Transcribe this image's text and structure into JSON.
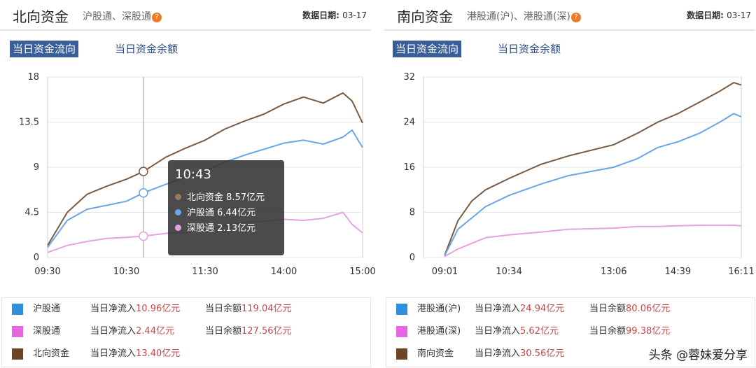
{
  "colors": {
    "north_total": "#7a5a40",
    "hugutong": "#6aa5e6",
    "shengutong": "#e6a2e2",
    "south_total": "#7a5a40",
    "ggt_sh": "#6aa5e6",
    "ggt_sz": "#e6a2e2",
    "legend_blue": "#2f8fe0",
    "legend_pink": "#e566e0",
    "legend_brown": "#6b4526"
  },
  "left": {
    "title": "北向资金",
    "subtitle": "沪股通、深股通",
    "help_icon": "question-icon",
    "date_label": "数据日期:",
    "date_value": "03-17",
    "tab_active": "当日资金流向",
    "tab_other": "当日资金余额",
    "tooltip": {
      "time": "10:43",
      "rows": [
        {
          "label": "北向资金",
          "value": "8.57亿元"
        },
        {
          "label": "沪股通",
          "value": "6.44亿元"
        },
        {
          "label": "深股通",
          "value": "2.13亿元"
        }
      ]
    },
    "legend": [
      {
        "name": "沪股通",
        "inflow_label": "当日净流入",
        "inflow_value": "10.96亿元",
        "balance_label": "当日余额",
        "balance_value": "119.04亿元"
      },
      {
        "name": "深股通",
        "inflow_label": "当日净流入",
        "inflow_value": "2.44亿元",
        "balance_label": "当日余额",
        "balance_value": "127.56亿元"
      },
      {
        "name": "北向资金",
        "inflow_label": "当日净流入",
        "inflow_value": "13.40亿元"
      }
    ]
  },
  "right": {
    "title": "南向资金",
    "subtitle": "港股通(沪)、港股通(深)",
    "help_icon": "question-icon",
    "date_label": "数据日期:",
    "date_value": "03-17",
    "tab_active": "当日资金流向",
    "tab_other": "当日资金余额",
    "legend": [
      {
        "name": "港股通(沪)",
        "inflow_label": "当日净流入",
        "inflow_value": "24.94亿元",
        "balance_label": "当日余额",
        "balance_value": "80.06亿元"
      },
      {
        "name": "港股通(深)",
        "inflow_label": "当日净流入",
        "inflow_value": "5.62亿元",
        "balance_label": "当日余额",
        "balance_value": "99.38亿元"
      },
      {
        "name": "南向资金",
        "inflow_label": "当日净流入",
        "inflow_value": "30.56亿元"
      }
    ]
  },
  "watermark": "头条 @蓉妹爱分享",
  "chart_data": [
    {
      "type": "line",
      "title": "北向资金",
      "xlabel": "",
      "ylabel": "",
      "x_ticks": [
        "09:30",
        "10:30",
        "11:30",
        "14:00",
        "15:00"
      ],
      "y_ticks": [
        "0",
        "4.5",
        "9",
        "13.5",
        "18"
      ],
      "ylim": [
        0,
        18
      ],
      "grid": "horizontal",
      "x": [
        "09:30",
        "09:45",
        "10:00",
        "10:15",
        "10:30",
        "10:43",
        "11:00",
        "11:15",
        "11:30",
        "13:15",
        "13:30",
        "13:45",
        "14:00",
        "14:15",
        "14:30",
        "14:45",
        "14:52",
        "15:00"
      ],
      "series": [
        {
          "name": "北向资金",
          "values": [
            1.2,
            4.5,
            6.3,
            7.1,
            7.8,
            8.57,
            10.0,
            10.9,
            11.7,
            12.8,
            13.6,
            14.3,
            15.3,
            16.0,
            15.4,
            16.4,
            15.6,
            13.4
          ]
        },
        {
          "name": "沪股通",
          "values": [
            1.0,
            3.7,
            4.8,
            5.2,
            5.6,
            6.44,
            7.3,
            8.0,
            8.6,
            9.5,
            10.2,
            10.8,
            11.4,
            11.7,
            11.3,
            12.0,
            12.7,
            10.96
          ]
        },
        {
          "name": "深股通",
          "values": [
            0.5,
            1.2,
            1.6,
            1.9,
            2.0,
            2.13,
            2.4,
            2.5,
            2.7,
            3.2,
            3.5,
            3.6,
            3.8,
            3.7,
            3.9,
            4.5,
            3.3,
            2.44
          ]
        }
      ]
    },
    {
      "type": "line",
      "title": "南向资金",
      "xlabel": "",
      "ylabel": "",
      "x_ticks": [
        "09:01",
        "10:34",
        "13:06",
        "14:39",
        "16:11"
      ],
      "y_ticks": [
        "0",
        "8",
        "16",
        "24",
        "32"
      ],
      "ylim": [
        0,
        32
      ],
      "grid": "horizontal",
      "x": [
        "09:00",
        "09:01",
        "09:20",
        "09:40",
        "10:00",
        "10:34",
        "11:20",
        "12:00",
        "13:06",
        "13:40",
        "14:10",
        "14:39",
        "15:10",
        "15:40",
        "16:00",
        "16:11"
      ],
      "series": [
        {
          "name": "南向资金",
          "values": [
            0.5,
            0.5,
            6.5,
            10.0,
            12.0,
            14.0,
            16.5,
            18.0,
            20.0,
            22.0,
            24.0,
            25.5,
            27.5,
            29.5,
            31.0,
            30.56
          ]
        },
        {
          "name": "港股通(沪)",
          "values": [
            0.4,
            0.4,
            5.0,
            7.0,
            9.0,
            11.0,
            13.0,
            14.5,
            16.0,
            17.5,
            19.5,
            20.5,
            22.0,
            24.0,
            25.5,
            24.94
          ]
        },
        {
          "name": "港股通(深)",
          "values": [
            0.2,
            0.2,
            1.5,
            2.5,
            3.5,
            4.0,
            4.5,
            5.0,
            5.2,
            5.5,
            5.5,
            5.6,
            5.7,
            5.7,
            5.7,
            5.62
          ]
        }
      ]
    }
  ]
}
